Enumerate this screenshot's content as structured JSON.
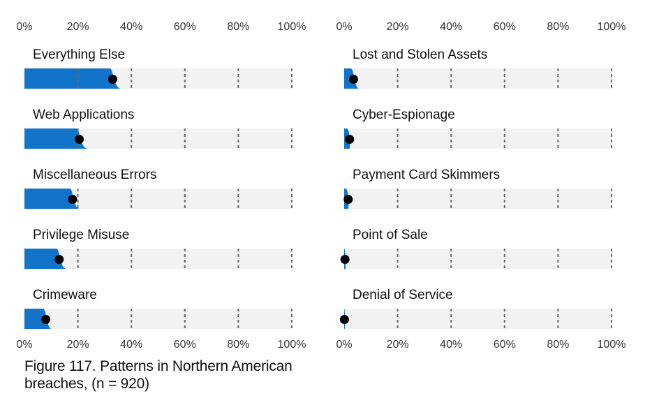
{
  "caption": "Figure 117. Patterns in Northern American breaches, (n = 920)",
  "colors": {
    "bar": "#1274c8",
    "track": "#f2f2f2",
    "dot": "#000000",
    "grid": "#666666"
  },
  "chart_data": {
    "type": "bar",
    "orientation": "horizontal",
    "xlim": [
      0,
      100
    ],
    "tick_labels": [
      "0%",
      "20%",
      "40%",
      "60%",
      "80%",
      "100%"
    ],
    "grid": "dashed vertical",
    "panels": [
      {
        "categories": [
          "Everything Else",
          "Web Applications",
          "Miscellaneous Errors",
          "Privilege Misuse",
          "Crimeware"
        ],
        "values": [
          33,
          20.5,
          18,
          13,
          8
        ],
        "range_upper": [
          36,
          23.5,
          20.5,
          15.5,
          10
        ]
      },
      {
        "categories": [
          "Lost and Stolen Assets",
          "Cyber-Espionage",
          "Payment Card Skimmers",
          "Point of Sale",
          "Denial of Service"
        ],
        "values": [
          3.5,
          2,
          1.5,
          0.3,
          0.1
        ],
        "range_upper": [
          5.5,
          2,
          1.5,
          0.5,
          0.2
        ]
      }
    ]
  }
}
